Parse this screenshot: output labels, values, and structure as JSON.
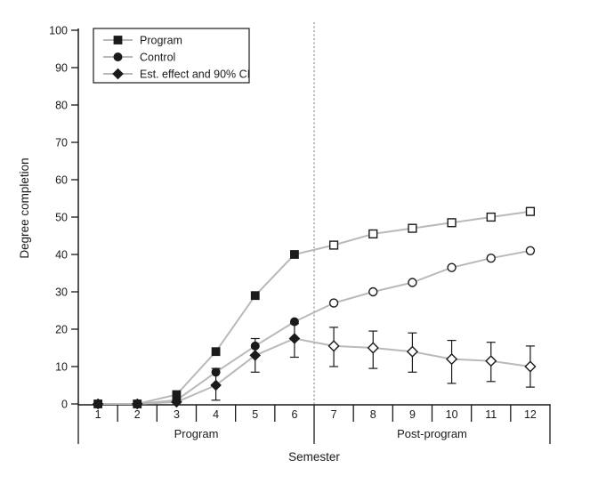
{
  "chart_data": {
    "type": "line",
    "title": "",
    "xlabel": "Semester",
    "ylabel": "Degree completion",
    "ylim": [
      0,
      100
    ],
    "ytick_step": 10,
    "x": [
      1,
      2,
      3,
      4,
      5,
      6,
      7,
      8,
      9,
      10,
      11,
      12
    ],
    "x_groups": [
      {
        "label": "Program",
        "from": 1,
        "to": 6
      },
      {
        "label": "Post-program",
        "from": 7,
        "to": 12
      }
    ],
    "divider_after_x": 6,
    "marker_fill_rule": "filled markers for semesters 1-6, open markers for semesters 7-12",
    "grid": false,
    "series": [
      {
        "name": "Program",
        "marker": "square",
        "values": [
          0,
          0,
          2.5,
          14,
          29,
          40,
          42.5,
          45.5,
          47,
          48.5,
          50,
          51.5
        ]
      },
      {
        "name": "Control",
        "marker": "circle",
        "values": [
          0,
          0,
          1,
          8.5,
          15.5,
          22,
          27,
          30,
          32.5,
          36.5,
          39,
          41
        ]
      },
      {
        "name": "Est. effect and 90% CI",
        "marker": "diamond",
        "values": [
          0,
          0,
          0.5,
          5,
          13,
          17.5,
          15.5,
          15,
          14,
          12,
          11.5,
          10
        ],
        "ci_low": [
          null,
          null,
          null,
          1,
          8.5,
          12.5,
          10,
          9.5,
          8.5,
          5.5,
          6,
          4.5
        ],
        "ci_high": [
          null,
          null,
          null,
          9.5,
          17.5,
          21.5,
          20.5,
          19.5,
          19,
          17,
          16.5,
          15.5
        ]
      }
    ],
    "legend": {
      "position": "top-left",
      "entries": [
        "Program",
        "Control",
        "Est. effect and 90% CI"
      ]
    },
    "colors": {
      "marker_and_axis": "#1a1a1a",
      "series_line": "#b9b9b9",
      "divider_line": "#8a8a8a",
      "background": "#ffffff"
    }
  }
}
